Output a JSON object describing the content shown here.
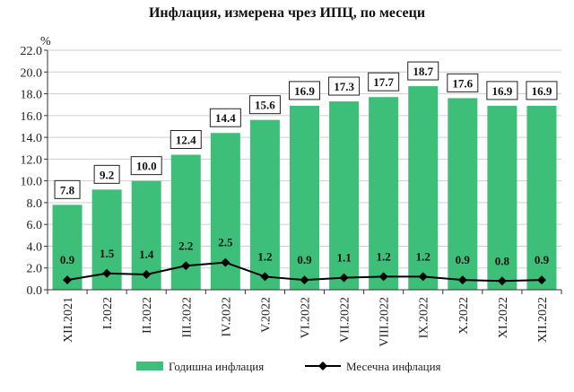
{
  "chart_data": {
    "type": "bar",
    "title": "Инфлация, измерена чрез ИПЦ, по месеци",
    "ylabel": "%",
    "ylim": [
      0,
      22
    ],
    "yticks": [
      "0.0",
      "2.0",
      "4.0",
      "6.0",
      "8.0",
      "10.0",
      "12.0",
      "14.0",
      "16.0",
      "18.0",
      "20.0",
      "22.0"
    ],
    "grid": true,
    "legend_position": "bottom",
    "categories": [
      "XII.2021",
      "I.2022",
      "II.2022",
      "III.2022",
      "IV.2022",
      "V.2022",
      "VI.2022",
      "VII.2022",
      "VIII.2022",
      "IX.2022",
      "X.2022",
      "XI.2022",
      "XII.2022"
    ],
    "series": [
      {
        "name": "Годишна инфлация",
        "type": "bar",
        "color": "#3dbf7a",
        "values": [
          7.8,
          9.2,
          10.0,
          12.4,
          14.4,
          15.6,
          16.9,
          17.3,
          17.7,
          18.7,
          17.6,
          16.9,
          16.9
        ]
      },
      {
        "name": "Месечна инфлация",
        "type": "line",
        "color": "#000000",
        "values": [
          0.9,
          1.5,
          1.4,
          2.2,
          2.5,
          1.2,
          0.9,
          1.1,
          1.2,
          1.2,
          0.9,
          0.8,
          0.9
        ]
      }
    ]
  }
}
